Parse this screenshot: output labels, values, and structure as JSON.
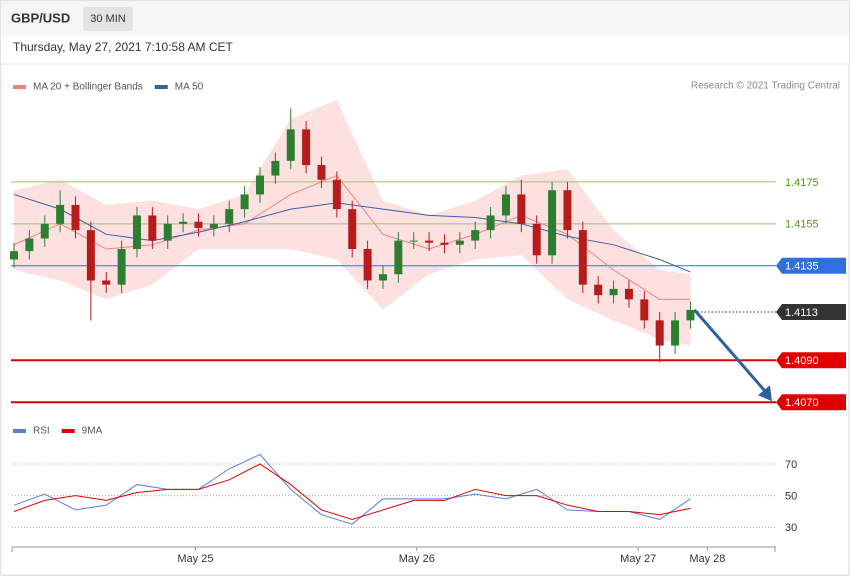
{
  "header": {
    "symbol": "GBP/USD",
    "timeframe": "30 MIN",
    "timestamp": "Thursday, May 27, 2021 7:10:58 AM CET"
  },
  "chart_data": [
    {
      "type": "candlestick",
      "credit": "Research © 2021 Trading Central",
      "up_color": "#2e7d32",
      "down_color": "#b71c1c",
      "xlim": [
        0,
        49.5
      ],
      "ylim": [
        1.4062,
        1.4214
      ],
      "open": [
        1.4138,
        1.4142,
        1.4148,
        1.4155,
        1.4164,
        1.4152,
        1.4128,
        1.4126,
        1.4143,
        1.4159,
        1.4147,
        1.4155,
        1.4156,
        1.4153,
        1.4155,
        1.4162,
        1.4169,
        1.4178,
        1.4185,
        1.42,
        1.4183,
        1.4176,
        1.4162,
        1.4143,
        1.4128,
        1.4131,
        1.4147,
        1.4147,
        1.4146,
        1.4145,
        1.4147,
        1.4152,
        1.4159,
        1.4169,
        1.4155,
        1.414,
        1.4171,
        1.4152,
        1.4126,
        1.4121,
        1.4124,
        1.4119,
        1.4109,
        1.4097,
        1.4109
      ],
      "high": [
        1.4146,
        1.4152,
        1.4159,
        1.4171,
        1.4168,
        1.4156,
        1.4132,
        1.4147,
        1.4163,
        1.4163,
        1.4159,
        1.416,
        1.416,
        1.4159,
        1.4166,
        1.4173,
        1.4182,
        1.4189,
        1.421,
        1.4204,
        1.4187,
        1.418,
        1.4166,
        1.4147,
        1.4135,
        1.4151,
        1.4151,
        1.4151,
        1.415,
        1.4151,
        1.4156,
        1.4163,
        1.4173,
        1.4176,
        1.4159,
        1.4175,
        1.4175,
        1.4156,
        1.413,
        1.4128,
        1.4128,
        1.4123,
        1.4113,
        1.4113,
        1.4118
      ],
      "low": [
        1.4134,
        1.4138,
        1.4144,
        1.4151,
        1.4148,
        1.4109,
        1.4122,
        1.4122,
        1.4139,
        1.4143,
        1.4143,
        1.4151,
        1.4149,
        1.4149,
        1.4151,
        1.4158,
        1.4165,
        1.4174,
        1.4181,
        1.4179,
        1.4172,
        1.4158,
        1.4139,
        1.4124,
        1.4124,
        1.4127,
        1.4143,
        1.4142,
        1.4141,
        1.4141,
        1.4143,
        1.4148,
        1.4155,
        1.4151,
        1.4136,
        1.4136,
        1.4148,
        1.4122,
        1.4117,
        1.4117,
        1.4115,
        1.4105,
        1.4089,
        1.4093,
        1.4105
      ],
      "close": [
        1.4142,
        1.4148,
        1.4155,
        1.4164,
        1.4152,
        1.4128,
        1.4126,
        1.4143,
        1.4159,
        1.4147,
        1.4155,
        1.4156,
        1.4153,
        1.4155,
        1.4162,
        1.4169,
        1.4178,
        1.4185,
        1.42,
        1.4183,
        1.4176,
        1.4162,
        1.4143,
        1.4128,
        1.4131,
        1.4147,
        1.4147,
        1.4146,
        1.4145,
        1.4147,
        1.4152,
        1.4159,
        1.4169,
        1.4155,
        1.414,
        1.4171,
        1.4152,
        1.4126,
        1.4121,
        1.4124,
        1.4119,
        1.4109,
        1.4097,
        1.4109,
        1.4114
      ],
      "series": [
        {
          "name": "MA 20 + Bollinger Bands",
          "color": "#f08080",
          "band_color": "#fde1e1",
          "x": [
            0,
            3,
            6,
            9,
            12,
            15,
            18,
            21,
            24,
            27,
            30,
            33,
            36,
            39,
            42,
            44
          ],
          "values": [
            1.4145,
            1.4155,
            1.4143,
            1.4145,
            1.4152,
            1.4155,
            1.4169,
            1.4178,
            1.415,
            1.4143,
            1.415,
            1.4159,
            1.415,
            1.4133,
            1.4119,
            1.4119
          ],
          "upper": [
            1.4171,
            1.4176,
            1.4164,
            1.4166,
            1.4162,
            1.4169,
            1.4205,
            1.4214,
            1.4166,
            1.4159,
            1.4166,
            1.4178,
            1.4181,
            1.4152,
            1.4133,
            1.4131
          ],
          "lower": [
            1.4133,
            1.4128,
            1.4119,
            1.4126,
            1.4143,
            1.4143,
            1.4143,
            1.4138,
            1.4114,
            1.4131,
            1.4138,
            1.414,
            1.4119,
            1.4109,
            1.41,
            1.4097
          ]
        },
        {
          "name": "MA 50",
          "color": "#3a5fa8",
          "x": [
            0,
            3,
            6,
            9,
            12,
            15,
            18,
            21,
            24,
            27,
            30,
            33,
            36,
            39,
            42,
            44
          ],
          "values": [
            1.4169,
            1.4162,
            1.415,
            1.4147,
            1.4151,
            1.4156,
            1.4162,
            1.4165,
            1.4162,
            1.4159,
            1.4158,
            1.4155,
            1.4149,
            1.4145,
            1.4138,
            1.4132
          ]
        }
      ],
      "levels": [
        {
          "value": 1.4175,
          "color": "#9cc46a",
          "text_color": "#4f9a12",
          "style": "text",
          "dotted": false,
          "width": 1
        },
        {
          "value": 1.4155,
          "color": "#9cc46a",
          "text_color": "#4f9a12",
          "style": "text",
          "dotted": false,
          "width": 1
        },
        {
          "value": 1.4135,
          "color": "#2f6fe0",
          "text_color": "#ffffff",
          "style": "box",
          "dotted": false,
          "width": 1
        },
        {
          "value": 1.4113,
          "color": "#333333",
          "text_color": "#ffffff",
          "style": "box",
          "dotted": true,
          "width": 1
        },
        {
          "value": {
            "value": 1.409,
            "label": "1.4090"
          },
          "color": "#e00000",
          "text_color": "#ffffff",
          "style": "box",
          "dotted": false,
          "width": 2
        },
        {
          "value": {
            "value": 1.407,
            "label": "1.4070"
          },
          "color": "#e00000",
          "text_color": "#ffffff",
          "style": "box",
          "dotted": false,
          "width": 2
        }
      ]
    },
    {
      "type": "line",
      "xlim": [
        0,
        49.5
      ],
      "ylim": [
        22,
        82
      ],
      "yticks": [
        30,
        50,
        70
      ],
      "grid": true,
      "x": [
        0,
        2,
        4,
        6,
        8,
        10,
        12,
        14,
        16,
        18,
        20,
        22,
        24,
        26,
        28,
        30,
        32,
        34,
        36,
        38,
        40,
        42,
        44
      ],
      "series": [
        {
          "name": "RSI",
          "color": "#5b7fd6",
          "values": [
            44,
            51,
            41,
            44,
            57,
            54,
            54,
            67,
            76,
            54,
            38,
            32,
            48,
            48,
            48,
            51,
            48,
            54,
            41,
            40,
            40,
            35,
            48
          ]
        },
        {
          "name": "9MA",
          "color": "#e00000",
          "values": [
            40,
            47,
            50,
            47,
            52,
            54,
            54,
            60,
            70,
            57,
            41,
            35,
            41,
            47,
            47,
            54,
            50,
            50,
            44,
            40,
            40,
            38,
            42
          ]
        }
      ],
      "xticks": [
        {
          "value": 11.8,
          "label": "May 25"
        },
        {
          "value": 26.2,
          "label": "May 26"
        },
        {
          "value": 40.6,
          "label": "May 27"
        },
        {
          "value": 45.1,
          "label": "May 28"
        }
      ]
    }
  ]
}
